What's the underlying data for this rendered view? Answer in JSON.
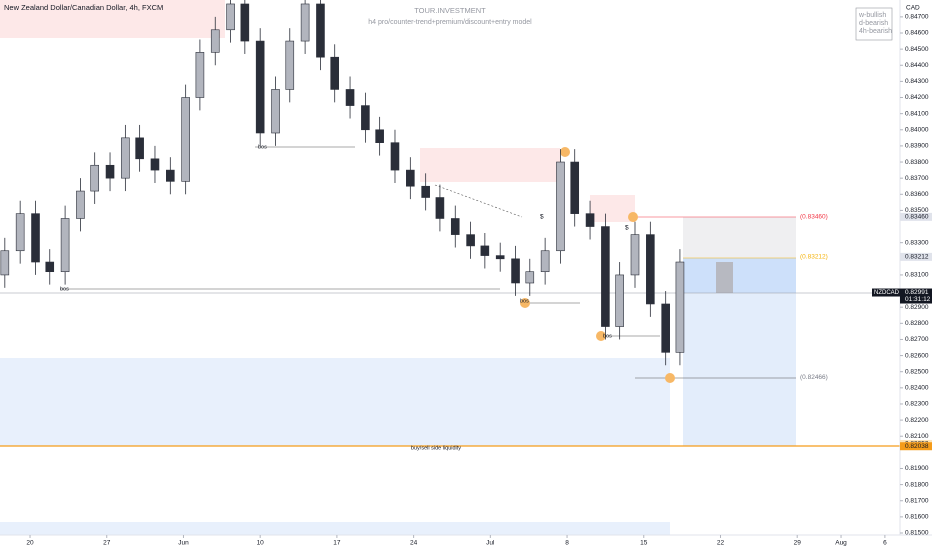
{
  "chart_data": {
    "type": "candlestick",
    "title": "New Zealand Dollar/Canadian Dollar, 4h, FXCM",
    "watermark": "TOUR.INVESTMENT",
    "subtitle": "h4 pro/counter-trend+premium/discount+entry model",
    "bias": [
      "w-bullish",
      "d-bearish",
      "4h-bearish"
    ],
    "currency": "CAD",
    "symbol": "NZDCAD",
    "last_price": {
      "value": 0.82991,
      "label": "0.82991"
    },
    "countdown": "01:31:12",
    "annotations": {
      "bos": [
        "bos",
        "bos",
        "bos",
        "bos"
      ],
      "dollar": [
        "$",
        "$"
      ],
      "liquidity": "buy/sell side liquidity"
    },
    "level_labels": [
      {
        "value": 0.8346,
        "label": "(0.83460)"
      },
      {
        "value": 0.83212,
        "label": "(0.83212)"
      },
      {
        "value": 0.82466,
        "label": "(0.82466)"
      }
    ],
    "price_labels": [
      {
        "value": 0.8346,
        "label": "0.83460"
      },
      {
        "value": 0.83212,
        "label": "0.83212"
      },
      {
        "value": 0.82052,
        "label": "0.82052"
      },
      {
        "value": 0.82038,
        "label": "0.82038"
      }
    ],
    "up_color": "#b2b5be",
    "down_color": "#2a2e39",
    "x": [
      -2.3,
      -0.9,
      0.5,
      1.8,
      3.2,
      4.6,
      5.9,
      7.3,
      8.7,
      10.0,
      11.4,
      12.8,
      14.2,
      15.5,
      16.9,
      18.3,
      19.6,
      21.0,
      22.4,
      23.7,
      25.1,
      26.5,
      27.8,
      29.2,
      30.6,
      31.9,
      33.3,
      34.7,
      36.1,
      37.4,
      38.8,
      40.2,
      41.5,
      42.9,
      44.3,
      45.6,
      47.0,
      48.4,
      49.7,
      51.1,
      52.5,
      53.8,
      55.2,
      56.6,
      58.0,
      59.3
    ],
    "open": [
      0.831,
      0.8325,
      0.8348,
      0.8318,
      0.8312,
      0.8345,
      0.8362,
      0.8378,
      0.837,
      0.8395,
      0.8382,
      0.8375,
      0.8368,
      0.842,
      0.8448,
      0.8462,
      0.8478,
      0.8455,
      0.8398,
      0.8425,
      0.8455,
      0.8478,
      0.8445,
      0.8425,
      0.8415,
      0.84,
      0.8392,
      0.8375,
      0.8365,
      0.8358,
      0.8345,
      0.8335,
      0.8328,
      0.8322,
      0.832,
      0.8305,
      0.8312,
      0.8325,
      0.838,
      0.8348,
      0.834,
      0.8278,
      0.831,
      0.8335,
      0.8292,
      0.8262
    ],
    "high": [
      0.8333,
      0.8356,
      0.8356,
      0.8326,
      0.8353,
      0.837,
      0.8386,
      0.8386,
      0.8403,
      0.8403,
      0.839,
      0.8383,
      0.8428,
      0.8456,
      0.847,
      0.8486,
      0.8486,
      0.8463,
      0.8433,
      0.8463,
      0.8486,
      0.8486,
      0.8453,
      0.8433,
      0.8423,
      0.8408,
      0.84,
      0.8383,
      0.8373,
      0.8366,
      0.8353,
      0.8343,
      0.8336,
      0.833,
      0.8328,
      0.832,
      0.8333,
      0.8388,
      0.8388,
      0.8356,
      0.8348,
      0.8318,
      0.8343,
      0.8343,
      0.83,
      0.8326
    ],
    "low": [
      0.8302,
      0.8317,
      0.831,
      0.8304,
      0.8304,
      0.8337,
      0.8354,
      0.8362,
      0.8362,
      0.8374,
      0.8367,
      0.836,
      0.836,
      0.8412,
      0.844,
      0.8454,
      0.8447,
      0.839,
      0.839,
      0.8417,
      0.8447,
      0.8437,
      0.8417,
      0.8407,
      0.8392,
      0.8384,
      0.8367,
      0.8357,
      0.835,
      0.8337,
      0.8327,
      0.832,
      0.8314,
      0.8312,
      0.8297,
      0.8297,
      0.8304,
      0.8317,
      0.834,
      0.8332,
      0.827,
      0.827,
      0.8302,
      0.8284,
      0.8254,
      0.8254
    ],
    "close": [
      0.8325,
      0.8348,
      0.8318,
      0.8312,
      0.8345,
      0.8362,
      0.8378,
      0.837,
      0.8395,
      0.8382,
      0.8375,
      0.8368,
      0.842,
      0.8448,
      0.8462,
      0.8478,
      0.8455,
      0.8398,
      0.8425,
      0.8455,
      0.8478,
      0.8445,
      0.8425,
      0.8415,
      0.84,
      0.8392,
      0.8375,
      0.8365,
      0.8358,
      0.8345,
      0.8335,
      0.8328,
      0.8322,
      0.832,
      0.8305,
      0.8312,
      0.8325,
      0.838,
      0.8348,
      0.834,
      0.8278,
      0.831,
      0.8335,
      0.8292,
      0.8262,
      0.8318
    ],
    "xlim": [
      -2.74,
      79.38
    ],
    "xticks": [
      {
        "value": 0,
        "label": "20"
      },
      {
        "value": 7,
        "label": "27"
      },
      {
        "value": 14,
        "label": "Jun"
      },
      {
        "value": 21,
        "label": "10"
      },
      {
        "value": 28,
        "label": "17"
      },
      {
        "value": 35,
        "label": "24"
      },
      {
        "value": 42,
        "label": "Jul"
      },
      {
        "value": 49,
        "label": "8"
      },
      {
        "value": 56,
        "label": "15"
      },
      {
        "value": 63,
        "label": "22"
      },
      {
        "value": 70,
        "label": "29"
      },
      {
        "value": 74,
        "label": "Aug"
      },
      {
        "value": 78,
        "label": "6"
      }
    ],
    "ylim": [
      0.814876,
      0.848046
    ],
    "yticks": [
      {
        "value": 0.815,
        "label": "0.81500"
      },
      {
        "value": 0.816,
        "label": "0.81600"
      },
      {
        "value": 0.817,
        "label": "0.81700"
      },
      {
        "value": 0.818,
        "label": "0.81800"
      },
      {
        "value": 0.819,
        "label": "0.81900"
      },
      {
        "value": 0.821,
        "label": "0.82100"
      },
      {
        "value": 0.822,
        "label": "0.82200"
      },
      {
        "value": 0.823,
        "label": "0.82300"
      },
      {
        "value": 0.824,
        "label": "0.82400"
      },
      {
        "value": 0.825,
        "label": "0.82500"
      },
      {
        "value": 0.826,
        "label": "0.82600"
      },
      {
        "value": 0.827,
        "label": "0.82700"
      },
      {
        "value": 0.828,
        "label": "0.82800"
      },
      {
        "value": 0.829,
        "label": "0.82900"
      },
      {
        "value": 0.831,
        "label": "0.83100"
      },
      {
        "value": 0.833,
        "label": "0.83300"
      },
      {
        "value": 0.835,
        "label": "0.83500"
      },
      {
        "value": 0.836,
        "label": "0.83600"
      },
      {
        "value": 0.837,
        "label": "0.83700"
      },
      {
        "value": 0.838,
        "label": "0.83800"
      },
      {
        "value": 0.839,
        "label": "0.83900"
      },
      {
        "value": 0.84,
        "label": "0.84000"
      },
      {
        "value": 0.841,
        "label": "0.84100"
      },
      {
        "value": 0.842,
        "label": "0.84200"
      },
      {
        "value": 0.843,
        "label": "0.84300"
      },
      {
        "value": 0.844,
        "label": "0.84400"
      },
      {
        "value": 0.845,
        "label": "0.84500"
      },
      {
        "value": 0.846,
        "label": "0.84600"
      },
      {
        "value": 0.847,
        "label": "0.84700"
      }
    ]
  }
}
